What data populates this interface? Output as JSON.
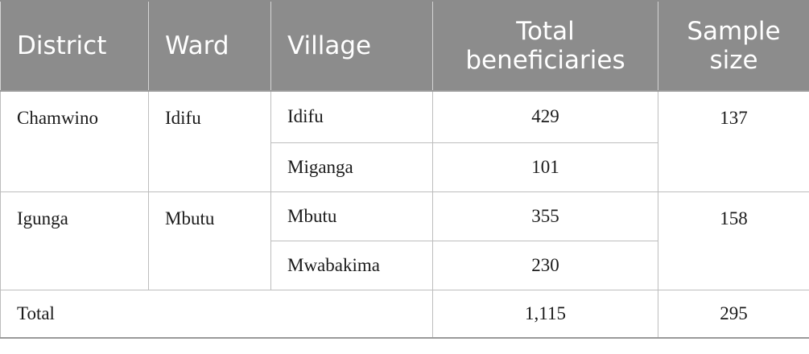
{
  "table": {
    "headers": {
      "district": "District",
      "ward": "Ward",
      "village": "Village",
      "total_beneficiaries": "Total beneficiaries",
      "sample_size": "Sample size"
    },
    "groups": [
      {
        "district": "Chamwino",
        "ward": "Idifu",
        "sample_size": "137",
        "villages": [
          {
            "name": "Idifu",
            "total": "429"
          },
          {
            "name": "Miganga",
            "total": "101"
          }
        ]
      },
      {
        "district": "Igunga",
        "ward": "Mbutu",
        "sample_size": "158",
        "villages": [
          {
            "name": "Mbutu",
            "total": "355"
          },
          {
            "name": "Mwabakima",
            "total": "230"
          }
        ]
      }
    ],
    "total_row": {
      "label": "Total",
      "total": "1,115",
      "sample_size": "295"
    },
    "colors": {
      "header_bg": "#8c8c8c",
      "header_text": "#ffffff",
      "grid_line": "#bdbdbd"
    }
  }
}
